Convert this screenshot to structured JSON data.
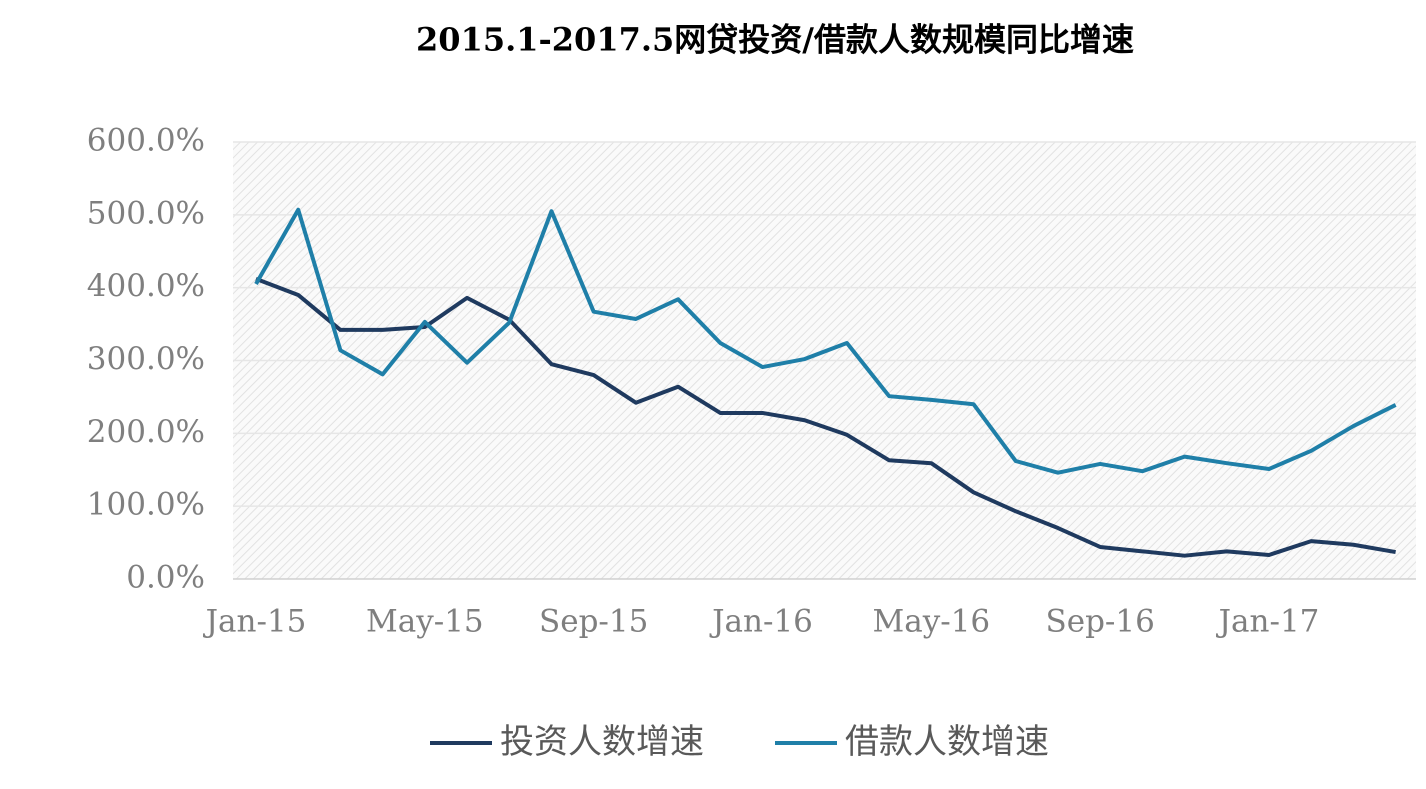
{
  "chart_data": {
    "type": "line",
    "title": "2015.1-2017.5网贷投资/借款人数规模同比增速",
    "categories": [
      "Jan-15",
      null,
      null,
      null,
      "May-15",
      null,
      null,
      null,
      "Sep-15",
      null,
      null,
      null,
      "Jan-16",
      null,
      null,
      null,
      "May-16",
      null,
      null,
      null,
      "Sep-16",
      null,
      null,
      null,
      "Jan-17",
      null,
      null,
      null
    ],
    "series": [
      {
        "name": "投资人数增速",
        "color": "#1f3a5f",
        "values": [
          412,
          390,
          342,
          342,
          346,
          386,
          356,
          295,
          280,
          242,
          264,
          228,
          228,
          218,
          198,
          163,
          159,
          119,
          93,
          70,
          44,
          38,
          32,
          38,
          33,
          52,
          47,
          37
        ]
      },
      {
        "name": "借款人数增速",
        "color": "#1f7fa8",
        "values": [
          405,
          507,
          314,
          281,
          353,
          297,
          352,
          505,
          367,
          357,
          384,
          324,
          291,
          302,
          324,
          251,
          246,
          240,
          162,
          146,
          158,
          148,
          168,
          159,
          151,
          176,
          210,
          239
        ]
      }
    ],
    "ylim": [
      0,
      600
    ],
    "yticks": [
      {
        "value": 0,
        "label": "0.0%"
      },
      {
        "value": 100,
        "label": "100.0%"
      },
      {
        "value": 200,
        "label": "200.0%"
      },
      {
        "value": 300,
        "label": "300.0%"
      },
      {
        "value": 400,
        "label": "400.0%"
      },
      {
        "value": 500,
        "label": "500.0%"
      },
      {
        "value": 600,
        "label": "600.0%"
      }
    ],
    "grid": true
  }
}
